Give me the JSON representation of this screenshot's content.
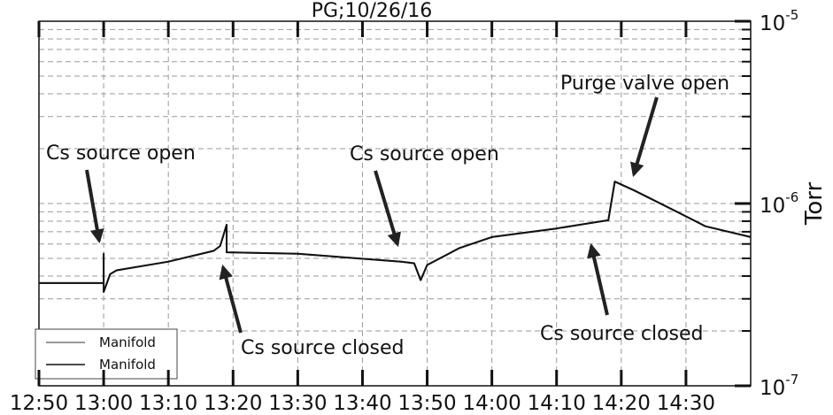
{
  "chart_data": {
    "type": "line",
    "title": "PG;10/26/16",
    "y_label": "Torr",
    "log_y": true,
    "grid": true,
    "x": [
      "12:50",
      "13:00",
      "13:00",
      "13:00",
      "13:01",
      "13:02",
      "13:10",
      "13:17",
      "13:18",
      "13:19",
      "13:19",
      "13:30",
      "13:46",
      "13:48",
      "13:49",
      "13:50",
      "13:55",
      "14:00",
      "14:10",
      "14:17",
      "14:18",
      "14:19",
      "14:22",
      "14:30",
      "14:33",
      "14:40"
    ],
    "series": [
      {
        "name": "Manifold",
        "color": "#777777",
        "values": [
          3.66e-07,
          3.66e-07,
          5.3e-07,
          3.27e-07,
          4.1e-07,
          4.3e-07,
          4.8e-07,
          5.5e-07,
          5.85e-07,
          7.65e-07,
          5.4e-07,
          5.3e-07,
          4.8e-07,
          4.7e-07,
          3.8e-07,
          4.6e-07,
          5.7e-07,
          6.55e-07,
          7.3e-07,
          8e-07,
          8.1e-07,
          1.32e-06,
          1.18e-06,
          8.5e-07,
          7.5e-07,
          6.55e-07
        ]
      },
      {
        "name": "Manifold",
        "color": "#111111",
        "values": [
          3.66e-07,
          3.66e-07,
          5.3e-07,
          3.27e-07,
          4.1e-07,
          4.3e-07,
          4.8e-07,
          5.5e-07,
          5.85e-07,
          7.65e-07,
          5.4e-07,
          5.3e-07,
          4.8e-07,
          4.7e-07,
          3.8e-07,
          4.6e-07,
          5.7e-07,
          6.55e-07,
          7.3e-07,
          8e-07,
          8.1e-07,
          1.32e-06,
          1.18e-06,
          8.5e-07,
          7.5e-07,
          6.55e-07
        ]
      }
    ],
    "xlim": [
      "12:50",
      "14:40"
    ],
    "xticks": [
      "12:50",
      "13:00",
      "13:10",
      "13:20",
      "13:30",
      "13:40",
      "13:50",
      "14:00",
      "14:10",
      "14:20",
      "14:30"
    ],
    "ylim": [
      1e-07,
      1e-05
    ],
    "yticks": [
      {
        "value": 1e-07,
        "label": "10",
        "exponent": "-7"
      },
      {
        "value": 1e-06,
        "label": "10",
        "exponent": "-6"
      },
      {
        "value": 1e-05,
        "label": "10",
        "exponent": "-5"
      }
    ],
    "yminorticks": [
      2e-07,
      3e-07,
      4e-07,
      5e-07,
      6e-07,
      7e-07,
      8e-07,
      9e-07,
      2e-06,
      3e-06,
      4e-06,
      5e-06,
      6e-06,
      7e-06,
      8e-06,
      9e-06
    ],
    "annotations": [
      "Cs source open",
      "Cs source closed",
      "Cs source open",
      "Purge valve open",
      "Cs source closed"
    ],
    "legend": "lower left"
  }
}
